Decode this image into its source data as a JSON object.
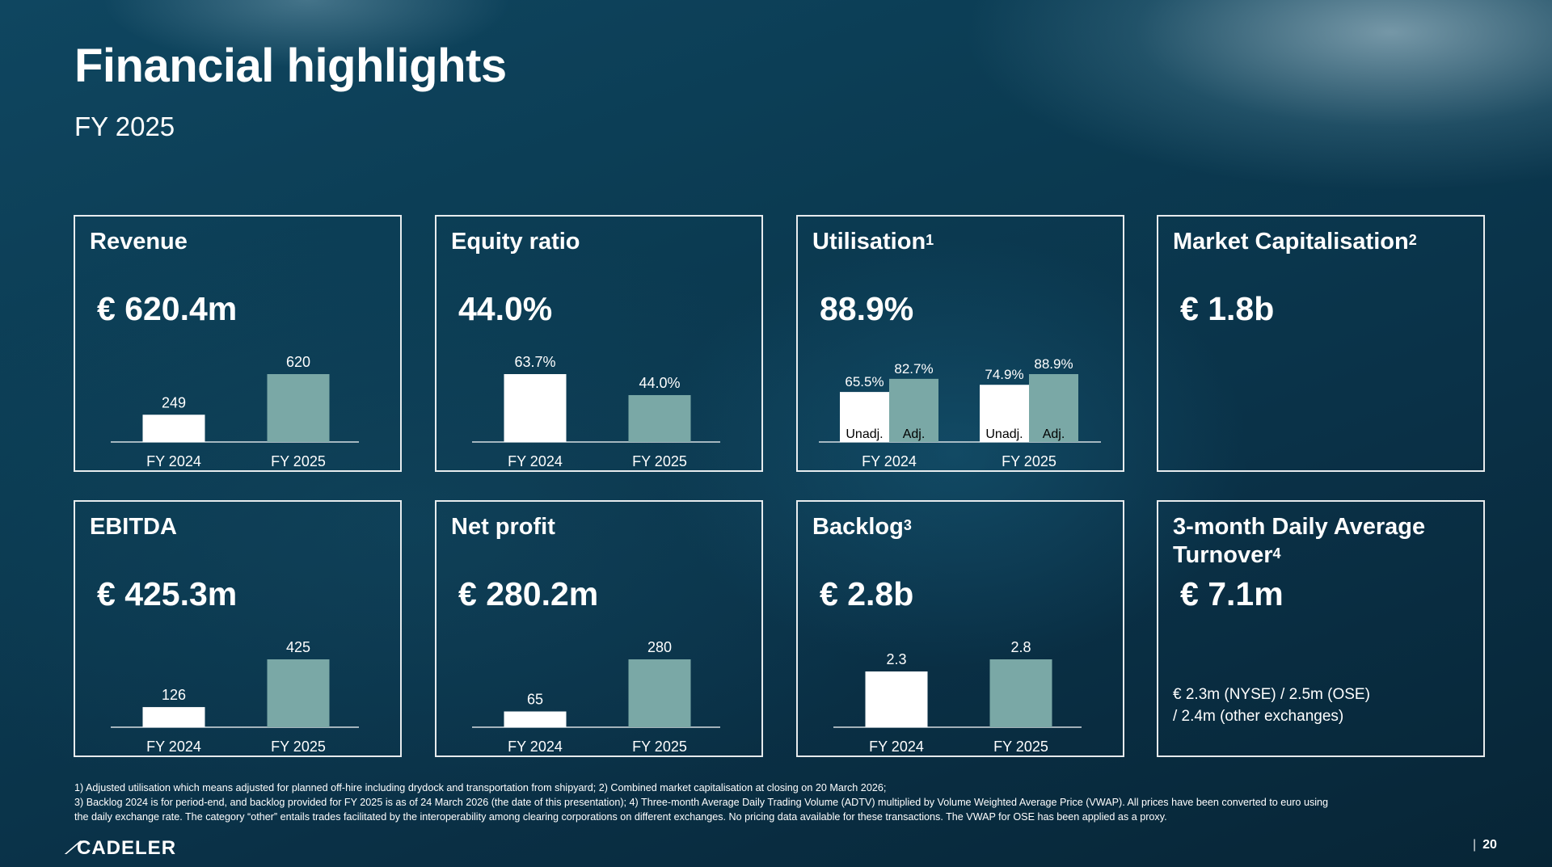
{
  "title": "Financial highlights",
  "subtitle": "FY 2025",
  "colors": {
    "bar_prior": "#ffffff",
    "bar_current": "#7aa8a6",
    "background": "#0b3b52"
  },
  "cards": {
    "revenue": {
      "title": "Revenue",
      "value": "€ 620.4m"
    },
    "equity": {
      "title": "Equity ratio",
      "value": "44.0%"
    },
    "utilisation": {
      "title": "Utilisation",
      "sup": "1",
      "value": "88.9%"
    },
    "marketcap": {
      "title": "Market Capitalisation",
      "sup": "2",
      "value": "€ 1.8b"
    },
    "ebitda": {
      "title": "EBITDA",
      "value": "€ 425.3m"
    },
    "netprofit": {
      "title": "Net profit",
      "value": "€ 280.2m"
    },
    "backlog": {
      "title": "Backlog",
      "sup": "3",
      "value": "€ 2.8b"
    },
    "turnover": {
      "title_line1": "3-month Daily Average",
      "title_line2": "Turnover",
      "sup": "4",
      "value": "€ 7.1m",
      "note_line1": "€ 2.3m (NYSE) / 2.5m (OSE)",
      "note_line2": "/ 2.4m (other exchanges)"
    }
  },
  "chart_data": [
    {
      "id": "revenue",
      "type": "bar",
      "title": "Revenue",
      "categories": [
        "FY 2024",
        "FY 2025"
      ],
      "values": [
        249,
        620
      ],
      "labels": [
        "249",
        "620"
      ],
      "ylim": [
        0,
        620
      ]
    },
    {
      "id": "equity",
      "type": "bar",
      "title": "Equity ratio",
      "categories": [
        "FY 2024",
        "FY 2025"
      ],
      "values": [
        63.7,
        44.0
      ],
      "labels": [
        "63.7%",
        "44.0%"
      ],
      "ylim": [
        0,
        63.7
      ]
    },
    {
      "id": "utilisation",
      "type": "bar",
      "title": "Utilisation",
      "categories": [
        "FY 2024",
        "FY 2025"
      ],
      "series": [
        {
          "name": "Unadj.",
          "values": [
            65.5,
            74.9
          ],
          "labels": [
            "65.5%",
            "74.9%"
          ]
        },
        {
          "name": "Adj.",
          "values": [
            82.7,
            88.9
          ],
          "labels": [
            "82.7%",
            "88.9%"
          ]
        }
      ],
      "ylim": [
        0,
        88.9
      ]
    },
    {
      "id": "ebitda",
      "type": "bar",
      "title": "EBITDA",
      "categories": [
        "FY 2024",
        "FY 2025"
      ],
      "values": [
        126,
        425
      ],
      "labels": [
        "126",
        "425"
      ],
      "ylim": [
        0,
        425
      ]
    },
    {
      "id": "netprofit",
      "type": "bar",
      "title": "Net profit",
      "categories": [
        "FY 2024",
        "FY 2025"
      ],
      "values": [
        65,
        280
      ],
      "labels": [
        "65",
        "280"
      ],
      "ylim": [
        0,
        280
      ]
    },
    {
      "id": "backlog",
      "type": "bar",
      "title": "Backlog",
      "categories": [
        "FY 2024",
        "FY 2025"
      ],
      "values": [
        2.3,
        2.8
      ],
      "labels": [
        "2.3",
        "2.8"
      ],
      "ylim": [
        0,
        2.8
      ]
    }
  ],
  "footnotes": [
    "1) Adjusted utilisation which means adjusted for planned off-hire including drydock and transportation from shipyard; 2) Combined market capitalisation at closing on 20 March 2026;",
    "3) Backlog 2024 is for period-end, and backlog provided for FY 2025 is as of 24 March 2026 (the date of this presentation); 4) Three-month Average Daily Trading Volume (ADTV) multiplied by Volume Weighted Average Price (VWAP). All prices have been converted to euro using",
    "the daily exchange rate. The category “other” entails trades facilitated by the interoperability among clearing corporations on different exchanges. No pricing data available for these transactions. The VWAP for OSE has been applied as a proxy."
  ],
  "logo": "CADELER",
  "page_number": "20"
}
